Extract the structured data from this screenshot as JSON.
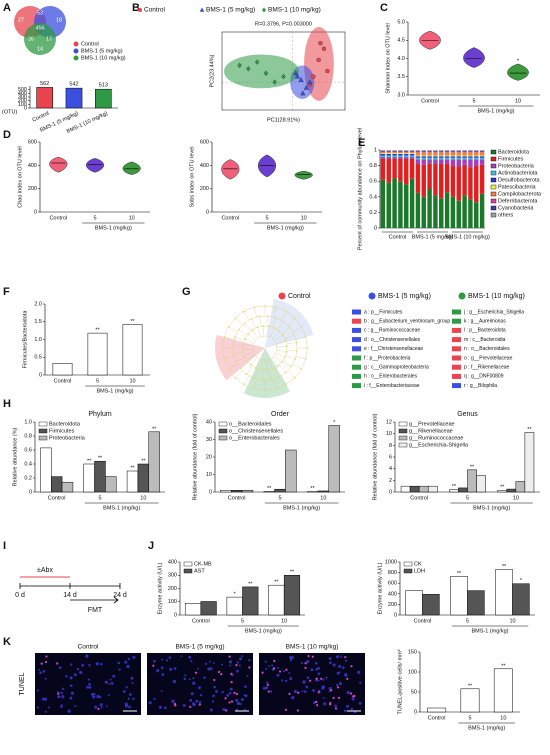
{
  "panel_labels": [
    "A",
    "B",
    "C",
    "D",
    "E",
    "F",
    "G",
    "H",
    "I",
    "J",
    "K"
  ],
  "chart_data": [
    {
      "type": "venn",
      "sets": [
        {
          "name": "Control",
          "color": "#e8454f"
        },
        {
          "name": "BMS-1 (5 mg/kg)",
          "color": "#3b4fe0"
        },
        {
          "name": "BMS-1 (10 mg/kg)",
          "color": "#2e9a46"
        }
      ],
      "regions": [
        27,
        53,
        18,
        456,
        26,
        17,
        14
      ]
    },
    {
      "type": "bar",
      "ylabel": "(OTU)",
      "categories": [
        "Control",
        "BMS-1 (5 mg/kg)",
        "BMS-1 (10 mg/kg)"
      ],
      "values": [
        562,
        542,
        513
      ],
      "colors": [
        "#e8454f",
        "#3b4fe0",
        "#2e9a46"
      ],
      "show_values": true,
      "ylim": [
        0,
        600
      ],
      "yticks": [
        0,
        100,
        200,
        300,
        400,
        500
      ]
    },
    {
      "type": "scatter",
      "subtitle": "R=0.3796, P=0.003000",
      "xlabel": "PC1(28.91%)",
      "ylabel": "PC2(23.44%)",
      "xlim": [
        -0.4,
        0.3
      ],
      "ylim": [
        -0.25,
        0.45
      ],
      "series": [
        {
          "name": "Control",
          "color": "#e8454f",
          "marker": "circle",
          "x": [
            0.15,
            0.18,
            0.12,
            0.2,
            0.1,
            0.16
          ],
          "y": [
            0.2,
            0.3,
            0.05,
            0.1,
            -0.02,
            0.35
          ]
        },
        {
          "name": "BMS-1 (5 mg/kg)",
          "color": "#3b4fe0",
          "marker": "triangle",
          "x": [
            0.05,
            0.08,
            0.02,
            0.1,
            0.06,
            0.03
          ],
          "y": [
            0.02,
            -0.05,
            0.08,
            0.0,
            -0.1,
            0.05
          ]
        },
        {
          "name": "BMS-1 (10 mg/kg)",
          "color": "#2e9a46",
          "marker": "diamond",
          "x": [
            -0.25,
            -0.15,
            -0.3,
            -0.1,
            -0.2,
            -0.05
          ],
          "y": [
            0.12,
            0.08,
            0.15,
            0.0,
            0.18,
            0.05
          ]
        }
      ]
    },
    {
      "type": "violin",
      "ylabel": "Shannon index on OTU level",
      "xlabel": "BMS-1 (mg/kg)",
      "categories": [
        "Control",
        "5",
        "10"
      ],
      "values": [
        4.5,
        4.0,
        3.6
      ],
      "ranges": [
        [
          4.25,
          4.75
        ],
        [
          3.75,
          4.3
        ],
        [
          3.4,
          3.85
        ]
      ],
      "colors": [
        "#f0607a",
        "#6a3fd0",
        "#3c9a3c"
      ],
      "sig": [
        null,
        null,
        "*"
      ],
      "ylim": [
        3,
        5
      ],
      "yticks": [
        {
          "value": 3,
          "label": "3.0"
        },
        {
          "value": 3.5,
          "label": "3.5"
        },
        {
          "value": 4,
          "label": "4.0"
        },
        {
          "value": 4.5,
          "label": "4.5"
        },
        {
          "value": 5,
          "label": "5.0"
        }
      ]
    },
    {
      "type": "violin",
      "ylabel": "Chao index on OTU level",
      "xlabel": "BMS-1 (mg/kg)",
      "categories": [
        "Control",
        "5",
        "10"
      ],
      "values": [
        420,
        405,
        370
      ],
      "ranges": [
        [
          340,
          470
        ],
        [
          340,
          460
        ],
        [
          320,
          430
        ]
      ],
      "colors": [
        "#f0607a",
        "#6a3fd0",
        "#3c9a3c"
      ],
      "ylim": [
        0,
        600
      ],
      "yticks": [
        0,
        200,
        400,
        600
      ]
    },
    {
      "type": "violin",
      "ylabel": "Sobs index on OTU level",
      "xlabel": "BMS-1 (mg/kg)",
      "categories": [
        "Control",
        "5",
        "10"
      ],
      "values": [
        370,
        400,
        320
      ],
      "ranges": [
        [
          280,
          450
        ],
        [
          300,
          490
        ],
        [
          280,
          350
        ]
      ],
      "colors": [
        "#f0607a",
        "#6a3fd0",
        "#3c9a3c"
      ],
      "ylim": [
        0,
        600
      ],
      "yticks": [
        0,
        200,
        400,
        600
      ]
    },
    {
      "type": "stacked_bar",
      "ylabel": "Percent of community abundance on Phylum level",
      "group_labels": [
        "Control",
        "BMS-1 (5 mg/kg)",
        "BMS-1 (10 mg/kg)"
      ],
      "ylim": [
        0,
        1
      ],
      "yticks": [
        0,
        0.2,
        0.4,
        0.6,
        0.8,
        1
      ],
      "series": [
        {
          "name": "Bacteroidota",
          "color": "#1a7a2a",
          "values": [
            0.62,
            0.58,
            0.64,
            0.6,
            0.56,
            0.63,
            0.45,
            0.4,
            0.5,
            0.42,
            0.38,
            0.46,
            0.4,
            0.35,
            0.42,
            0.37,
            0.33,
            0.44
          ]
        },
        {
          "name": "Firmicutes",
          "color": "#e02020",
          "values": [
            0.27,
            0.31,
            0.25,
            0.29,
            0.33,
            0.26,
            0.37,
            0.41,
            0.33,
            0.4,
            0.44,
            0.37,
            0.4,
            0.44,
            0.39,
            0.41,
            0.47,
            0.37
          ]
        },
        {
          "name": "Proteobacteria",
          "color": "#a040c0",
          "values": [
            0.02,
            0.02,
            0.02,
            0.02,
            0.02,
            0.02,
            0.06,
            0.07,
            0.05,
            0.06,
            0.06,
            0.05,
            0.08,
            0.09,
            0.07,
            0.1,
            0.08,
            0.07
          ]
        },
        {
          "name": "Actinobacteriota",
          "color": "#40c0e0",
          "values": [
            0.02,
            0.02,
            0.02,
            0.02,
            0.02,
            0.02,
            0.02,
            0.02,
            0.02,
            0.02,
            0.02,
            0.02,
            0.02,
            0.02,
            0.02,
            0.02,
            0.02,
            0.02
          ]
        },
        {
          "name": "Desulfobacterota",
          "color": "#2040c0",
          "values": [
            0.02,
            0.02,
            0.02,
            0.02,
            0.02,
            0.02,
            0.02,
            0.02,
            0.02,
            0.02,
            0.02,
            0.02,
            0.02,
            0.02,
            0.02,
            0.02,
            0.02,
            0.02
          ]
        },
        {
          "name": "Patescibacteria",
          "color": "#f0f040",
          "values": [
            0.01,
            0.01,
            0.01,
            0.01,
            0.01,
            0.01,
            0.01,
            0.01,
            0.01,
            0.01,
            0.01,
            0.01,
            0.01,
            0.01,
            0.01,
            0.01,
            0.01,
            0.01
          ]
        },
        {
          "name": "Campilobacterota",
          "color": "#f08040",
          "values": [
            0.01,
            0.01,
            0.01,
            0.01,
            0.01,
            0.01,
            0.04,
            0.04,
            0.04,
            0.04,
            0.04,
            0.04,
            0.04,
            0.04,
            0.04,
            0.04,
            0.04,
            0.04
          ]
        },
        {
          "name": "Deferribacterota",
          "color": "#e040a0",
          "values": [
            0.01,
            0.01,
            0.01,
            0.01,
            0.01,
            0.01,
            0.01,
            0.01,
            0.01,
            0.01,
            0.01,
            0.01,
            0.01,
            0.01,
            0.01,
            0.01,
            0.01,
            0.01
          ]
        },
        {
          "name": "Cyanobacteria",
          "color": "#4040a0",
          "values": [
            0.01,
            0.01,
            0.01,
            0.01,
            0.01,
            0.01,
            0.01,
            0.01,
            0.01,
            0.01,
            0.01,
            0.01,
            0.01,
            0.01,
            0.01,
            0.01,
            0.01,
            0.01
          ]
        },
        {
          "name": "others",
          "color": "#a0a0a0",
          "values": [
            0.01,
            0.01,
            0.01,
            0.01,
            0.01,
            0.01,
            0.01,
            0.01,
            0.01,
            0.01,
            0.01,
            0.01,
            0.01,
            0.01,
            0.01,
            0.01,
            0.01,
            0.01
          ]
        }
      ]
    },
    {
      "type": "bar",
      "ylabel": "Firmicutes/Bacteroidota",
      "xlabel": "BMS-1 (mg/kg)",
      "categories": [
        "Control",
        "5",
        "10"
      ],
      "values": [
        0.33,
        1.18,
        1.42
      ],
      "colors": [
        "#ffffff",
        "#ffffff",
        "#ffffff"
      ],
      "sig": [
        null,
        "**",
        "**"
      ],
      "ylim": [
        0,
        2
      ],
      "yticks": [
        0,
        0.5,
        {
          "value": 1,
          "label": "1.0"
        },
        1.5,
        {
          "value": 2,
          "label": "2.0"
        }
      ]
    },
    {
      "type": "grouped_bar",
      "title": "Phylum",
      "ylabel": "Relative abundance (%)",
      "xlabel": "BMS-1 (mg/kg)",
      "categories": [
        "Control",
        "5",
        "10"
      ],
      "ylim": [
        0,
        1
      ],
      "yticks": [
        0,
        0.2,
        0.4,
        0.6,
        0.8,
        {
          "value": 1,
          "label": "1.0"
        }
      ],
      "series": [
        {
          "name": "Bacteroidota",
          "color": "#ffffff",
          "values": [
            0.63,
            0.4,
            0.3
          ],
          "sig": [
            null,
            "**",
            "**"
          ]
        },
        {
          "name": "Firmicutes",
          "color": "#555555",
          "values": [
            0.22,
            0.44,
            0.4
          ],
          "sig": [
            null,
            "**",
            "**"
          ]
        },
        {
          "name": "Proteobacteria",
          "color": "#bbbbbb",
          "values": [
            0.14,
            0.22,
            0.86
          ],
          "sig": [
            null,
            null,
            "**"
          ]
        }
      ]
    },
    {
      "type": "grouped_bar",
      "title": "Order",
      "ylabel": "Relative abundance (fold of control)",
      "xlabel": "BMS-1 (mg/kg)",
      "categories": [
        "Control",
        "5",
        "10"
      ],
      "ylim": [
        0,
        40
      ],
      "yticks": [
        0,
        10,
        20,
        30,
        40
      ],
      "series": [
        {
          "name": "o__Bacteroidales",
          "color": "#ffffff",
          "values": [
            1,
            0.25,
            0.2
          ],
          "sig": [
            null,
            "**",
            "**"
          ]
        },
        {
          "name": "o__Christensenellales",
          "color": "#555555",
          "values": [
            1,
            1.6,
            0.6
          ]
        },
        {
          "name": "o__Enterobacterales",
          "color": "#bbbbbb",
          "values": [
            1,
            24,
            38
          ],
          "sig": [
            null,
            null,
            "*"
          ]
        }
      ]
    },
    {
      "type": "grouped_bar",
      "title": "Genus",
      "ylabel": "Relative abundance (fold of control)",
      "xlabel": "BMS-1 (mg/kg)",
      "categories": [
        "Control",
        "5",
        "10"
      ],
      "ylim": [
        0,
        12
      ],
      "yticks": [
        0,
        2,
        4,
        6,
        8,
        10,
        12
      ],
      "series": [
        {
          "name": "g__Prevotellaceae",
          "color": "#ffffff",
          "values": [
            1,
            0.4,
            0.3
          ],
          "sig": [
            null,
            "**",
            "**"
          ]
        },
        {
          "name": "g__Rikenellaceae",
          "color": "#555555",
          "values": [
            1,
            0.7,
            0.5
          ]
        },
        {
          "name": "g__Ruminococcaceae",
          "color": "#bbbbbb",
          "values": [
            1,
            3.8,
            1.8
          ],
          "sig": [
            null,
            "**",
            null
          ]
        },
        {
          "name": "g__Escherichia-Shigella",
          "color": "#eeeeee",
          "values": [
            1,
            2.8,
            10.2
          ],
          "sig": [
            null,
            null,
            "**"
          ]
        }
      ]
    },
    {
      "type": "grouped_bar",
      "ylabel": "Enzyme activity (U/L)",
      "xlabel": "BMS-1 (mg/kg)",
      "categories": [
        "Control",
        "5",
        "10"
      ],
      "ylim": [
        0,
        400
      ],
      "yticks": [
        0,
        100,
        200,
        300,
        400
      ],
      "series": [
        {
          "name": "CK-MB",
          "color": "#ffffff",
          "values": [
            88,
            135,
            225
          ],
          "sig": [
            null,
            "*",
            "**"
          ]
        },
        {
          "name": "AST",
          "color": "#555555",
          "values": [
            102,
            212,
            300
          ],
          "sig": [
            null,
            "**",
            "**"
          ]
        }
      ]
    },
    {
      "type": "grouped_bar",
      "ylabel": "Enzyme activity (U/L)",
      "xlabel": "BMS-1 (mg/kg)",
      "categories": [
        "Control",
        "5",
        "10"
      ],
      "ylim": [
        0,
        1000
      ],
      "yticks": [
        0,
        200,
        400,
        600,
        800,
        1000
      ],
      "series": [
        {
          "name": "CK",
          "color": "#ffffff",
          "values": [
            460,
            730,
            860
          ],
          "sig": [
            null,
            "**",
            "**"
          ]
        },
        {
          "name": "LDH",
          "color": "#555555",
          "values": [
            390,
            460,
            590
          ],
          "sig": [
            null,
            null,
            "*"
          ]
        }
      ]
    },
    {
      "type": "bar",
      "ylabel": "TUNEL-positive cells/ mm²",
      "xlabel": "BMS-1 (mg/kg)",
      "categories": [
        "Control",
        "5",
        "10"
      ],
      "values": [
        10,
        58,
        108
      ],
      "colors": [
        "#ffffff",
        "#ffffff",
        "#ffffff"
      ],
      "sig": [
        null,
        "**",
        "**"
      ],
      "ylim": [
        0,
        150
      ],
      "yticks": [
        0,
        50,
        100,
        150
      ]
    }
  ],
  "cladogram": {
    "legend": [
      {
        "name": "Control",
        "color": "#e8454f"
      },
      {
        "name": "BMS-1 (5 mg/kg)",
        "color": "#3b4fe0"
      },
      {
        "name": "BMS-1 (10 mg/kg)",
        "color": "#2e9a46"
      }
    ],
    "labels": [
      {
        "text": "a : p__Firmicutes",
        "color": "#3b4fe0"
      },
      {
        "text": "b : g__Eubacterium_ventriosum_group",
        "color": "#e8454f"
      },
      {
        "text": "c : g__Ruminococcaceae",
        "color": "#3b4fe0"
      },
      {
        "text": "d : o__Christensenellales",
        "color": "#3b4fe0"
      },
      {
        "text": "e : f__Christensenellaceae",
        "color": "#3b4fe0"
      },
      {
        "text": "f : p__Proteobacteria",
        "color": "#2e9a46"
      },
      {
        "text": "g : c__Gammaproteobacteria",
        "color": "#2e9a46"
      },
      {
        "text": "h : o__Enterobacterales",
        "color": "#2e9a46"
      },
      {
        "text": "i : f__Enterobacteriaceae",
        "color": "#2e9a46"
      },
      {
        "text": "j : g__Escherichia_Shigella",
        "color": "#2e9a46"
      },
      {
        "text": "k : g__Aureimonas",
        "color": "#2e9a46"
      },
      {
        "text": "l : p__Bacteroidota",
        "color": "#e8454f"
      },
      {
        "text": "m : c__Bacteroidia",
        "color": "#e8454f"
      },
      {
        "text": "n : o__Bacteroidales",
        "color": "#e8454f"
      },
      {
        "text": "o : g__Prevotellaceae",
        "color": "#e8454f"
      },
      {
        "text": "p : f__Rikenellaceae",
        "color": "#e8454f"
      },
      {
        "text": "q : g__DNF00809",
        "color": "#e8454f"
      },
      {
        "text": "r : g__Bilophila",
        "color": "#3b4fe0"
      }
    ]
  },
  "timeline": {
    "treatment": "±Abx",
    "days": [
      "0 d",
      "14 d",
      "24 d"
    ],
    "transplant": "FMT"
  },
  "tunel": {
    "row_label": "TUNEL",
    "columns": [
      "Control",
      "BMS-1 (5 mg/kg)",
      "BMS-1 (10 mg/kg)"
    ]
  }
}
